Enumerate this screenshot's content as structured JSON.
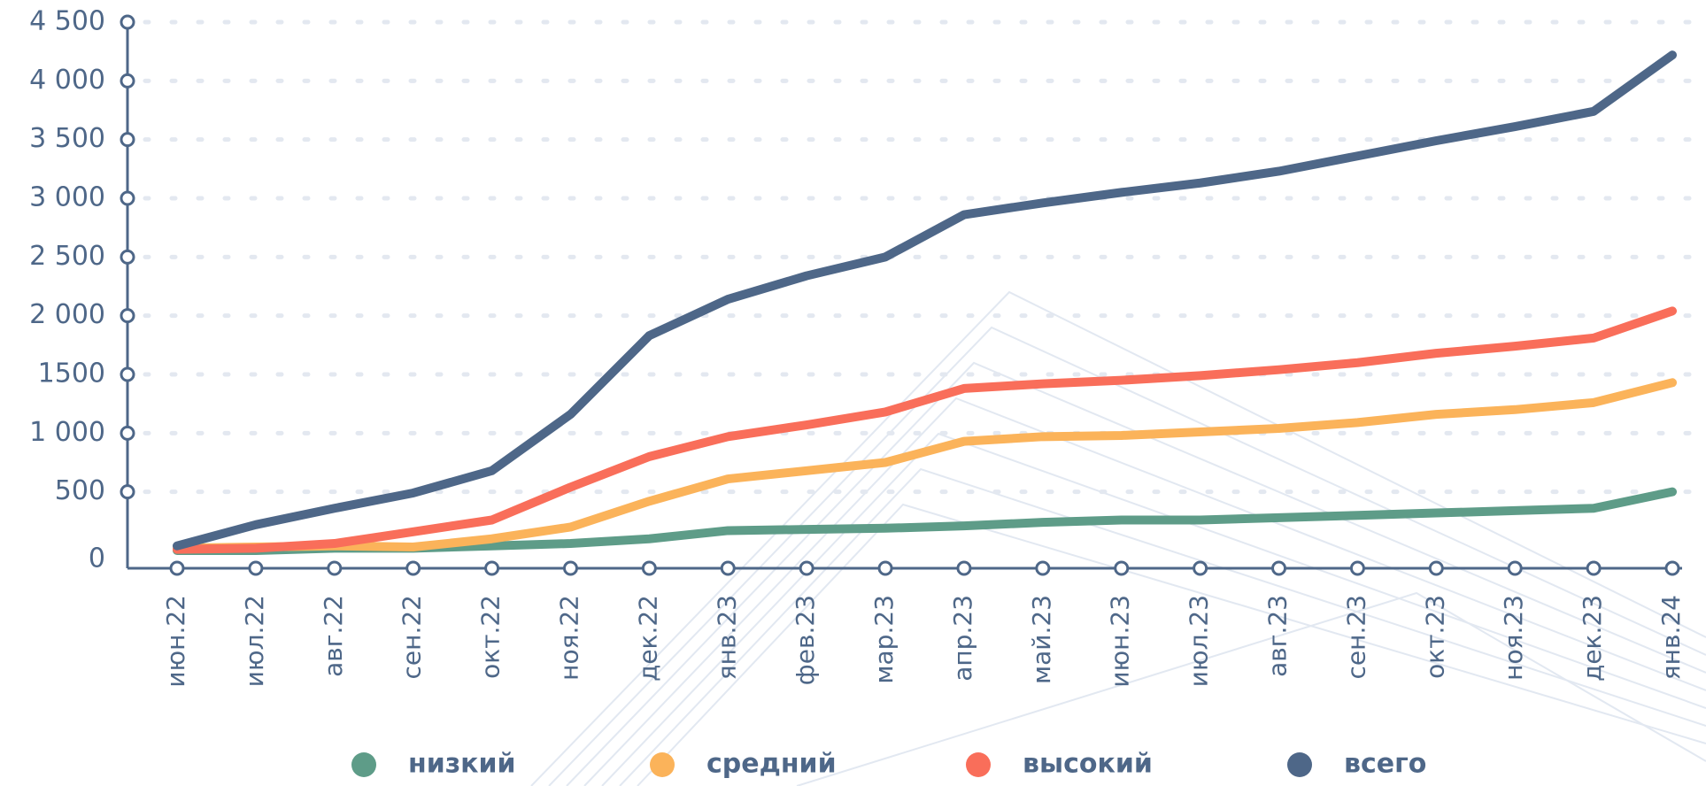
{
  "chart_data": {
    "type": "line",
    "categories": [
      "июн.22",
      "июл.22",
      "авг.22",
      "сен.22",
      "окт.22",
      "ноя.22",
      "дек.22",
      "янв.23",
      "фев.23",
      "мар.23",
      "апр.23",
      "май.23",
      "июн.23",
      "июл.23",
      "авг.23",
      "сен.23",
      "окт.23",
      "ноя.23",
      "дек.23",
      "янв.24"
    ],
    "series": [
      {
        "name": "низкий",
        "color": "#5e9c88",
        "values": [
          0,
          0,
          20,
          20,
          40,
          60,
          100,
          170,
          180,
          190,
          210,
          240,
          260,
          260,
          280,
          300,
          320,
          340,
          360,
          500
        ]
      },
      {
        "name": "средний",
        "color": "#fbb35a",
        "values": [
          20,
          30,
          40,
          30,
          100,
          200,
          420,
          610,
          680,
          750,
          930,
          970,
          980,
          1010,
          1040,
          1090,
          1160,
          1200,
          1260,
          1430
        ]
      },
      {
        "name": "высокий",
        "color": "#f96e5a",
        "values": [
          10,
          20,
          60,
          160,
          260,
          540,
          800,
          970,
          1070,
          1180,
          1380,
          1420,
          1450,
          1490,
          1540,
          1600,
          1680,
          1740,
          1810,
          2040
        ]
      },
      {
        "name": "всего",
        "color": "#4e6788",
        "values": [
          40,
          220,
          360,
          490,
          680,
          1160,
          1830,
          2140,
          2340,
          2500,
          2860,
          2960,
          3050,
          3130,
          3230,
          3360,
          3490,
          3610,
          3740,
          4220
        ]
      }
    ],
    "ylim": [
      0,
      4500
    ],
    "yticks": [
      0,
      500,
      {
        "value": 1000,
        "label": "1 000"
      },
      1500,
      {
        "value": 2000,
        "label": "2 000"
      },
      {
        "value": 2500,
        "label": "2 500"
      },
      {
        "value": 3000,
        "label": "3 000"
      },
      {
        "value": 3500,
        "label": "3 500"
      },
      {
        "value": 4000,
        "label": "4 000"
      },
      {
        "value": 4500,
        "label": "4 500"
      }
    ],
    "grid": true
  }
}
